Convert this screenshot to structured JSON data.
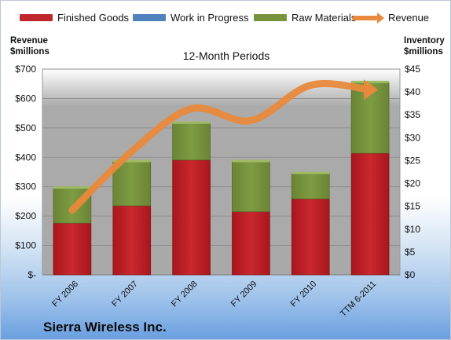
{
  "legend": {
    "finished_goods": "Finished Goods",
    "work_in_progress": "Work in Progress",
    "raw_materials": "Raw Materials",
    "revenue": "Revenue"
  },
  "axes": {
    "left_title_line1": "Revenue",
    "left_title_line2": "$millions",
    "right_title_line1": "Inventory",
    "right_title_line2": "$millions"
  },
  "chart_title": "12-Month Periods",
  "company": "Sierra Wireless Inc.",
  "colors": {
    "finished_goods": "#c0272d",
    "work_in_progress": "#4f81bd",
    "raw_materials": "#77933c",
    "revenue": "#e8893c"
  },
  "chart_data": {
    "type": "bar",
    "stacked": true,
    "title": "12-Month Periods",
    "categories": [
      "FY 2006",
      "FY 2007",
      "FY 2008",
      "FY 2009",
      "FY 2010",
      "TTM 6-2011"
    ],
    "series": [
      {
        "name": "Finished Goods",
        "axis": "right",
        "values": [
          11.3,
          15.1,
          25.1,
          13.8,
          16.6,
          26.6
        ]
      },
      {
        "name": "Work in Progress",
        "axis": "right",
        "values": [
          0,
          0,
          0,
          0,
          0,
          0
        ]
      },
      {
        "name": "Raw Materials",
        "axis": "right",
        "values": [
          7.7,
          9.7,
          8.1,
          11.0,
          5.6,
          15.5
        ]
      },
      {
        "name": "Revenue",
        "type": "line",
        "axis": "left",
        "values": [
          220,
          420,
          565,
          525,
          645,
          630
        ]
      }
    ],
    "left_axis": {
      "title": "Revenue $millions",
      "ylim": [
        0,
        700
      ],
      "ticks": [
        0,
        100,
        200,
        300,
        400,
        500,
        600,
        700
      ],
      "tick_labels": [
        "$-",
        "$100",
        "$200",
        "$300",
        "$400",
        "$500",
        "$600",
        "$700"
      ]
    },
    "right_axis": {
      "title": "Inventory $millions",
      "ylim": [
        0,
        45
      ],
      "ticks": [
        0,
        5,
        10,
        15,
        20,
        25,
        30,
        35,
        40,
        45
      ],
      "tick_labels": [
        "$0",
        "$5",
        "$10",
        "$15",
        "$20",
        "$25",
        "$30",
        "$35",
        "$40",
        "$45"
      ]
    },
    "grid": true,
    "legend_position": "top"
  }
}
